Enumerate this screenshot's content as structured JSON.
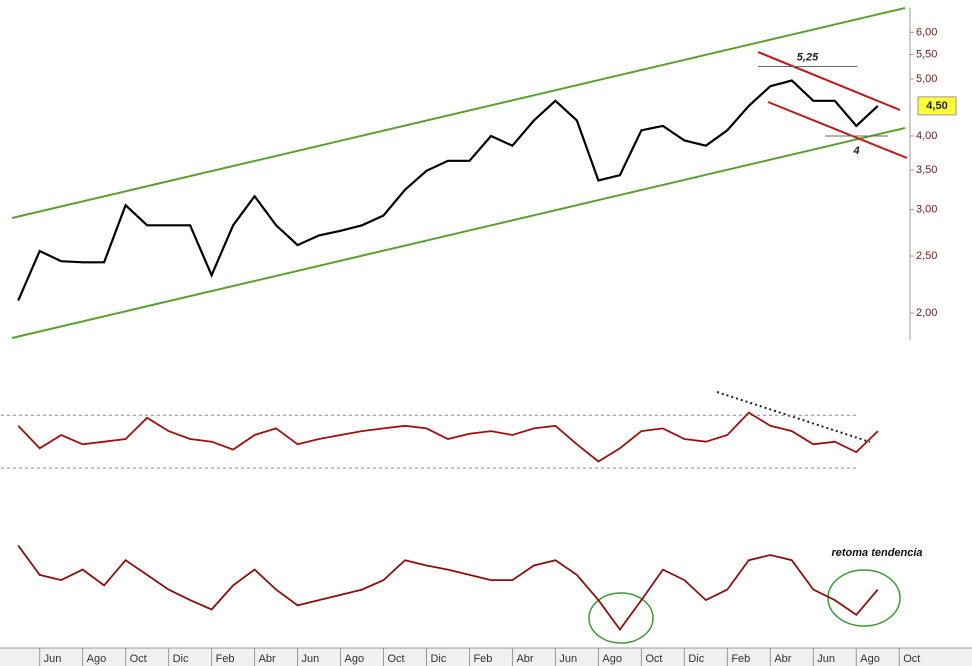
{
  "chart_data": [
    {
      "type": "line",
      "log_scale": true,
      "color": "#000000",
      "x": [
        0,
        1,
        2,
        3,
        4,
        5,
        6,
        7,
        8,
        9,
        10,
        11,
        12,
        13,
        14,
        15,
        16,
        17,
        18,
        19,
        20,
        21,
        22,
        23,
        24,
        25,
        26,
        27,
        28,
        29,
        30,
        31,
        32,
        33,
        34,
        35,
        36,
        37,
        38,
        39,
        40
      ],
      "values": [
        2.1,
        2.55,
        2.45,
        2.44,
        2.44,
        3.05,
        2.82,
        2.82,
        2.82,
        2.32,
        2.82,
        3.16,
        2.82,
        2.61,
        2.71,
        2.76,
        2.82,
        2.93,
        3.24,
        3.49,
        3.63,
        3.63,
        4.0,
        3.85,
        4.25,
        4.59,
        4.25,
        3.36,
        3.43,
        4.09,
        4.16,
        3.93,
        3.85,
        4.09,
        4.5,
        4.86,
        4.97,
        4.59,
        4.59,
        4.16,
        4.5
      ],
      "xlim": [
        -0.8,
        41.5
      ],
      "ylim": [
        1.8,
        6.6
      ],
      "yticks": [
        {
          "value": 2,
          "label": "2,00"
        },
        {
          "value": 2.5,
          "label": "2,50"
        },
        {
          "value": 3,
          "label": "3,00"
        },
        {
          "value": 3.5,
          "label": "3,50"
        },
        {
          "value": 4,
          "label": "4,00"
        },
        {
          "value": 5,
          "label": "5,00"
        },
        {
          "value": 5.5,
          "label": "5,50"
        },
        {
          "value": 6,
          "label": "6,00"
        }
      ],
      "xticks": [
        {
          "value": 1,
          "label": "Jun"
        },
        {
          "value": 3,
          "label": "Ago"
        },
        {
          "value": 5,
          "label": "Oct"
        },
        {
          "value": 7,
          "label": "Dic"
        },
        {
          "value": 9,
          "label": "Feb"
        },
        {
          "value": 11,
          "label": "Abr"
        },
        {
          "value": 13,
          "label": "Jun"
        },
        {
          "value": 15,
          "label": "Ago"
        },
        {
          "value": 17,
          "label": "Oct"
        },
        {
          "value": 19,
          "label": "Dic"
        },
        {
          "value": 21,
          "label": "Feb"
        },
        {
          "value": 23,
          "label": "Abr"
        },
        {
          "value": 25,
          "label": "Jun"
        },
        {
          "value": 27,
          "label": "Ago"
        },
        {
          "value": 29,
          "label": "Oct"
        },
        {
          "value": 31,
          "label": "Dic"
        },
        {
          "value": 33,
          "label": "Feb"
        },
        {
          "value": 35,
          "label": "Abr"
        },
        {
          "value": 37,
          "label": "Jun"
        },
        {
          "value": 39,
          "label": "Ago"
        },
        {
          "value": 41,
          "label": "Oct"
        }
      ],
      "levels": [
        {
          "value": 5.25,
          "label": "5,25"
        },
        4
      ],
      "last_price": {
        "value": 4.5,
        "label": "4,50"
      }
    },
    {
      "type": "line",
      "color": "#a01010",
      "x": [
        0,
        1,
        2,
        3,
        4,
        5,
        6,
        7,
        8,
        9,
        10,
        11,
        12,
        13,
        14,
        15,
        16,
        17,
        18,
        19,
        20,
        21,
        22,
        23,
        24,
        25,
        26,
        27,
        28,
        29,
        30,
        31,
        32,
        33,
        34,
        35,
        36,
        37,
        38,
        39,
        40
      ],
      "values": [
        62,
        45,
        55,
        48,
        50,
        52,
        68,
        58,
        52,
        50,
        44,
        55,
        60,
        48,
        52,
        55,
        58,
        60,
        62,
        60,
        52,
        56,
        58,
        55,
        60,
        62,
        48,
        35,
        45,
        58,
        60,
        52,
        50,
        55,
        72,
        62,
        58,
        48,
        50,
        42,
        58
      ],
      "xlim": [
        -0.8,
        41.5
      ],
      "ylim": [
        18,
        83
      ],
      "levels": [
        70,
        30
      ]
    },
    {
      "type": "line",
      "color": "#8b0f0f",
      "x": [
        0,
        1,
        2,
        3,
        4,
        5,
        6,
        7,
        8,
        9,
        10,
        11,
        12,
        13,
        14,
        15,
        16,
        17,
        18,
        19,
        20,
        21,
        22,
        23,
        24,
        25,
        26,
        27,
        28,
        29,
        30,
        31,
        32,
        33,
        34,
        35,
        36,
        37,
        38,
        39,
        40
      ],
      "values": [
        90,
        62,
        57,
        67,
        52,
        76,
        62,
        48,
        38,
        29,
        52,
        67,
        48,
        33,
        38,
        43,
        48,
        57,
        76,
        71,
        67,
        62,
        57,
        57,
        71,
        76,
        62,
        38,
        10,
        38,
        67,
        57,
        38,
        48,
        76,
        81,
        76,
        48,
        38,
        24,
        48
      ],
      "xlim": [
        -0.8,
        41.5
      ],
      "ylim": [
        0,
        100
      ],
      "annotation": "retoma tendencia"
    }
  ]
}
